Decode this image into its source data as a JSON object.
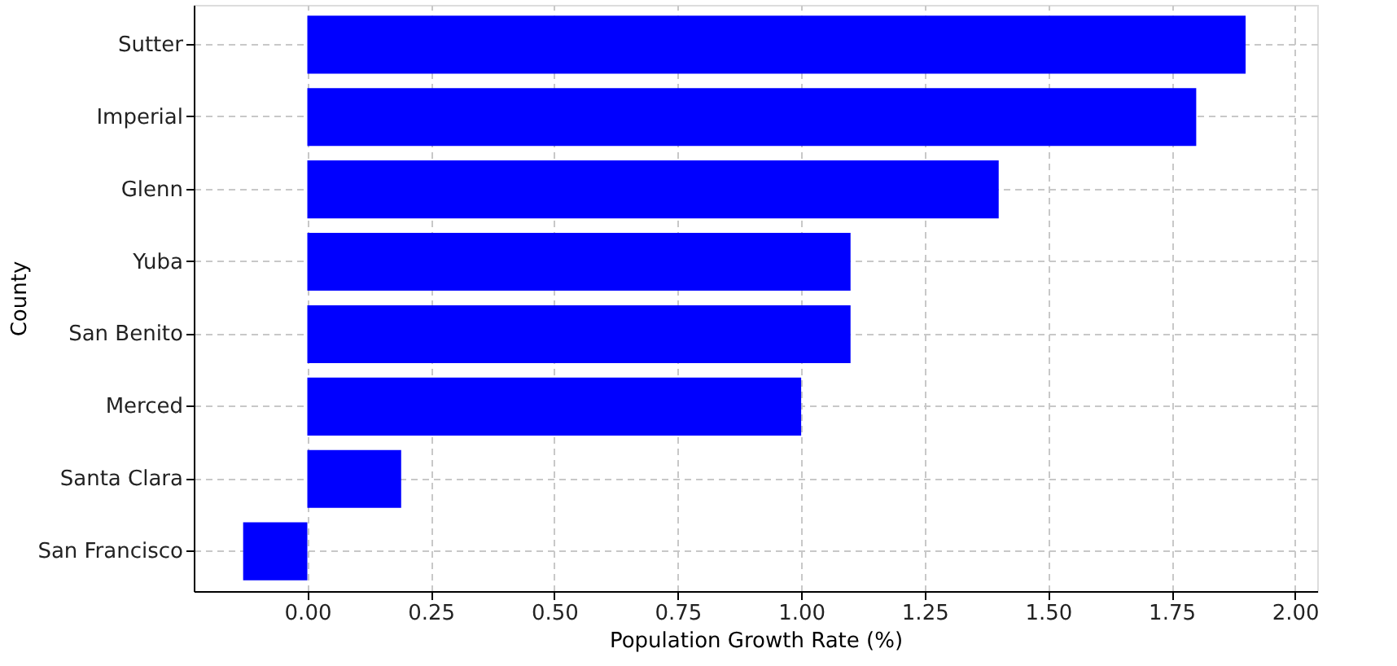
{
  "chart_data": {
    "type": "bar",
    "orientation": "horizontal",
    "xlabel": "Population Growth Rate (%)",
    "ylabel": "County",
    "categories": [
      "Sutter",
      "Imperial",
      "Glenn",
      "Yuba",
      "San Benito",
      "Merced",
      "Santa Clara",
      "San Francisco"
    ],
    "values": [
      1.9,
      1.8,
      1.4,
      1.1,
      1.1,
      1.0,
      0.19,
      -0.13
    ],
    "color": "#0000ff",
    "xlim": [
      -0.23,
      2.045
    ],
    "xticks": [
      {
        "value": 0,
        "label": "0.00"
      },
      {
        "value": 0.25,
        "label": "0.25"
      },
      {
        "value": 0.5,
        "label": "0.50"
      },
      {
        "value": 0.75,
        "label": "0.75"
      },
      {
        "value": 1,
        "label": "1.00"
      },
      {
        "value": 1.25,
        "label": "1.25"
      },
      {
        "value": 1.5,
        "label": "1.50"
      },
      {
        "value": 1.75,
        "label": "1.75"
      },
      {
        "value": 2,
        "label": "2.00"
      }
    ],
    "grid": true
  }
}
